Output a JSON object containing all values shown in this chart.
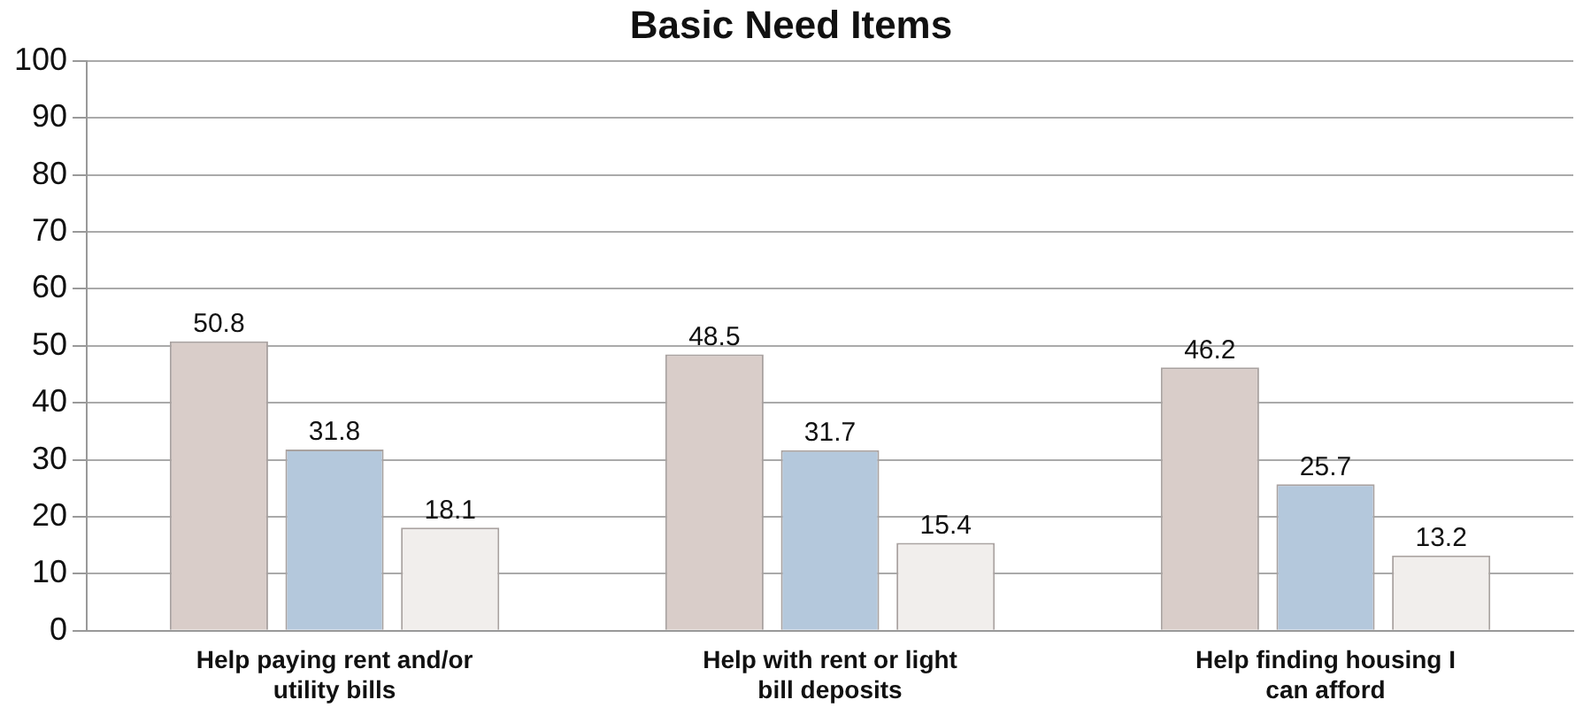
{
  "chart_data": {
    "type": "bar",
    "title": "Basic Need Items",
    "categories": [
      "Help paying rent and/or utility bills",
      "Help with rent or light bill deposits",
      "Help finding housing I can afford"
    ],
    "series": [
      {
        "color": "#d9cdc9",
        "values": [
          50.8,
          48.5,
          46.2
        ]
      },
      {
        "color": "#b4c8dc",
        "values": [
          31.8,
          31.7,
          25.7
        ]
      },
      {
        "color": "#f1eeec",
        "values": [
          18.1,
          15.4,
          13.2
        ]
      }
    ],
    "ylim": [
      0,
      100
    ],
    "yticks": [
      0,
      10,
      20,
      30,
      40,
      50,
      60,
      70,
      80,
      90,
      100
    ],
    "grid": "y",
    "legend": false,
    "data_labels": true
  }
}
